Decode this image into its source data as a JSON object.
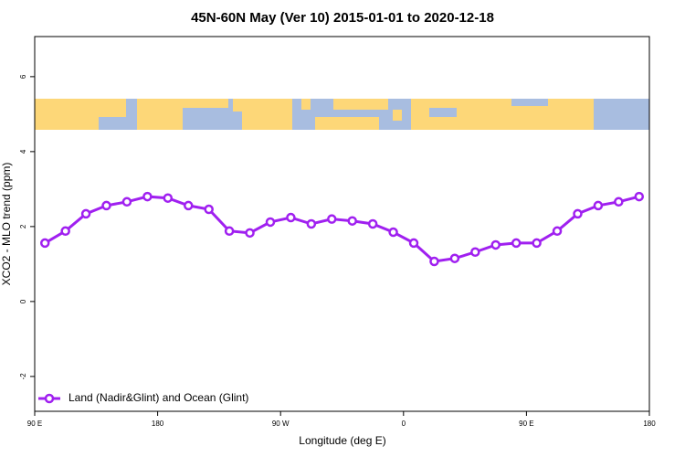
{
  "chart_data": {
    "type": "line",
    "title": "45N-60N May (Ver 10)   2015-01-01 to 2020-12-18",
    "x_label": "Longitude (deg E)",
    "y_label": "XCO2 - MLO trend (ppm)",
    "x": [
      97.5,
      112.5,
      127.5,
      142.5,
      157.5,
      172.5,
      187.5,
      202.5,
      217.5,
      232.5,
      247.5,
      262.5,
      277.5,
      292.5,
      307.5,
      322.5,
      337.5,
      352.5,
      367.5,
      382.5,
      397.5,
      412.5,
      427.5,
      442.5,
      457.5,
      472.5,
      487.5,
      502.5,
      517.5,
      532.5
    ],
    "series": [
      {
        "name": "Land (Nadir&Glint) and Ocean (Glint)",
        "color": "#a020f0",
        "values": [
          1.56,
          1.88,
          2.34,
          2.56,
          2.66,
          2.8,
          2.76,
          2.56,
          2.46,
          1.88,
          1.83,
          2.12,
          2.24,
          2.07,
          2.2,
          2.15,
          2.07,
          1.85,
          1.56,
          1.07,
          1.15,
          1.32,
          1.51,
          1.56,
          1.56,
          1.88,
          2.34,
          2.56,
          2.66,
          2.8
        ]
      }
    ],
    "xlim": [
      90,
      540
    ],
    "xticks": [
      {
        "value": 90,
        "label": "90 E"
      },
      180,
      {
        "value": 270,
        "label": "90 W"
      },
      {
        "value": 360,
        "label": "0"
      },
      {
        "value": 450,
        "label": "90 E"
      },
      {
        "value": 540,
        "label": "180"
      }
    ],
    "ylim": [
      -2.93,
      7.07
    ],
    "yticks": [
      -2,
      0,
      2,
      4,
      6
    ],
    "legend": "bottomleft"
  }
}
